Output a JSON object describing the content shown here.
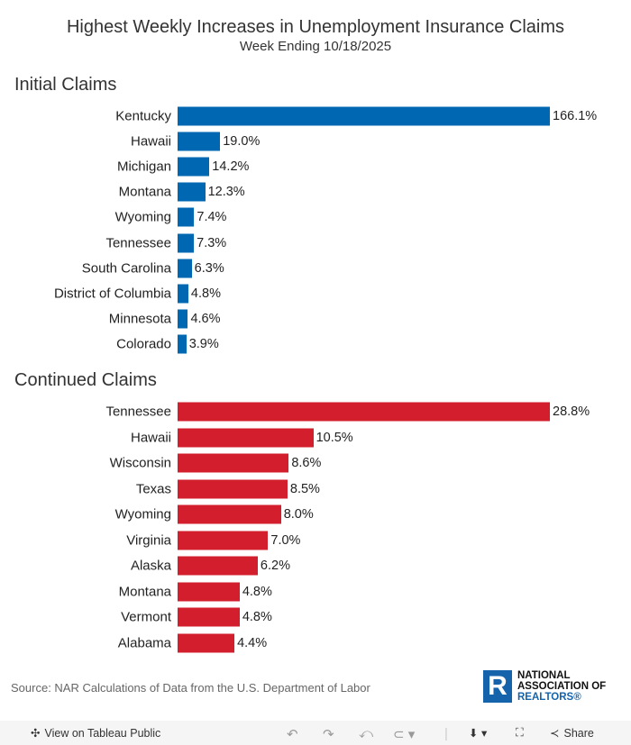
{
  "title": "Highest Weekly Increases in Unemployment Insurance Claims",
  "subtitle": "Week Ending 10/18/2025",
  "chart_data": [
    {
      "type": "bar",
      "orientation": "horizontal",
      "title": "Initial Claims",
      "color": "#0068b3",
      "categories": [
        "Kentucky",
        "Hawaii",
        "Michigan",
        "Montana",
        "Wyoming",
        "Tennessee",
        "South Carolina",
        "District of Columbia",
        "Minnesota",
        "Colorado"
      ],
      "values": [
        166.1,
        19.0,
        14.2,
        12.3,
        7.4,
        7.3,
        6.3,
        4.8,
        4.6,
        3.9
      ],
      "labels": [
        "166.1%",
        "19.0%",
        "14.2%",
        "12.3%",
        "7.4%",
        "7.3%",
        "6.3%",
        "4.8%",
        "4.6%",
        "3.9%"
      ],
      "unit": "%"
    },
    {
      "type": "bar",
      "orientation": "horizontal",
      "title": "Continued Claims",
      "color": "#d31f2d",
      "categories": [
        "Tennessee",
        "Hawaii",
        "Wisconsin",
        "Texas",
        "Wyoming",
        "Virginia",
        "Alaska",
        "Montana",
        "Vermont",
        "Alabama"
      ],
      "values": [
        28.8,
        10.5,
        8.6,
        8.5,
        8.0,
        7.0,
        6.2,
        4.8,
        4.8,
        4.4
      ],
      "labels": [
        "28.8%",
        "10.5%",
        "8.6%",
        "8.5%",
        "8.0%",
        "7.0%",
        "6.2%",
        "4.8%",
        "4.8%",
        "4.4%"
      ],
      "unit": "%"
    }
  ],
  "source": "Source: NAR Calculations of Data from the U.S. Department of Labor",
  "logo": {
    "mark": "R",
    "line1": "NATIONAL",
    "line2": "ASSOCIATION OF",
    "line3": "REALTORS®"
  },
  "toolbar": {
    "view_label": "View on Tableau Public",
    "share_label": "Share"
  }
}
